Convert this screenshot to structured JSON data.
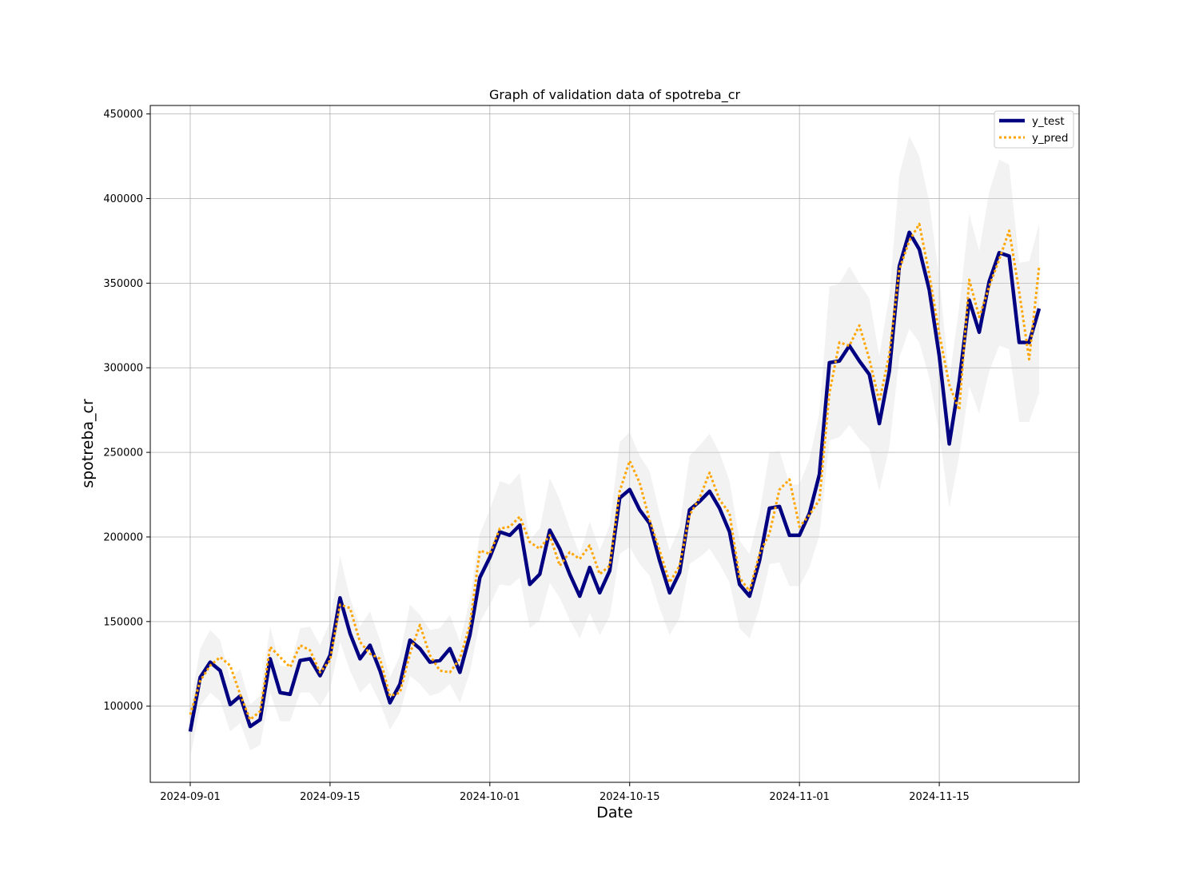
{
  "chart_data": {
    "type": "line",
    "title": "Graph of validation data of spotreba_cr",
    "xlabel": "Date",
    "ylabel": "spotreba_cr",
    "x_start": "2024-09-01",
    "x_end": "2024-11-25",
    "xlim": [
      "2024-08-28",
      "2024-11-29"
    ],
    "ylim": [
      55000,
      455000
    ],
    "x_ticks": [
      "2024-09-01",
      "2024-09-15",
      "2024-10-01",
      "2024-10-15",
      "2024-11-01",
      "2024-11-15"
    ],
    "y_ticks": [
      100000,
      150000,
      200000,
      250000,
      300000,
      350000,
      400000,
      450000
    ],
    "grid": true,
    "legend_position": "top-right",
    "series": [
      {
        "name": "y_test",
        "color": "#000080",
        "style": "solid",
        "values": [
          85000,
          117000,
          126000,
          121000,
          101000,
          106000,
          88000,
          92000,
          128000,
          108000,
          107000,
          127000,
          128000,
          118000,
          130000,
          164000,
          143000,
          128000,
          136000,
          121000,
          102000,
          113000,
          139000,
          134000,
          126000,
          127000,
          134000,
          120000,
          142000,
          176000,
          188000,
          203000,
          201000,
          207000,
          172000,
          178000,
          204000,
          193000,
          178000,
          165000,
          182000,
          167000,
          180000,
          223000,
          228000,
          216000,
          208000,
          186000,
          167000,
          179000,
          216000,
          221000,
          227000,
          217000,
          203000,
          172000,
          165000,
          186000,
          217000,
          218000,
          201000,
          201000,
          214000,
          237000,
          303000,
          304000,
          313000,
          304000,
          296000,
          267000,
          298000,
          360000,
          380000,
          370000,
          346000,
          307000,
          255000,
          292000,
          340000,
          321000,
          351000,
          368000,
          366000,
          315000,
          315000,
          335000
        ]
      },
      {
        "name": "y_pred",
        "color": "#FFA500",
        "style": "dotted",
        "values": [
          95000,
          115000,
          124000,
          129000,
          124000,
          107000,
          92000,
          97000,
          135000,
          129000,
          123000,
          136000,
          133000,
          120000,
          127000,
          160000,
          158000,
          138000,
          131000,
          128000,
          106000,
          108000,
          131000,
          148000,
          130000,
          121000,
          120000,
          128000,
          148000,
          192000,
          190000,
          205000,
          206000,
          212000,
          197000,
          193000,
          201000,
          183000,
          191000,
          187000,
          195000,
          178000,
          183000,
          227000,
          245000,
          232000,
          210000,
          192000,
          173000,
          183000,
          213000,
          223000,
          238000,
          222000,
          214000,
          176000,
          168000,
          190000,
          202000,
          228000,
          234000,
          206000,
          213000,
          222000,
          285000,
          315000,
          313000,
          325000,
          305000,
          280000,
          308000,
          358000,
          375000,
          385000,
          355000,
          320000,
          290000,
          275000,
          352000,
          330000,
          348000,
          364000,
          381000,
          345000,
          305000,
          360000
        ]
      }
    ],
    "band": {
      "color": "#d3d3d3",
      "lower": [
        70000,
        100000,
        108000,
        103000,
        85000,
        90000,
        74000,
        77000,
        108000,
        91000,
        91000,
        108000,
        108000,
        100000,
        110000,
        138000,
        121000,
        108000,
        114000,
        102000,
        86000,
        96000,
        118000,
        113000,
        106000,
        108000,
        113000,
        102000,
        120000,
        150000,
        160000,
        172000,
        171000,
        176000,
        146000,
        151000,
        173000,
        164000,
        151000,
        140000,
        155000,
        142000,
        153000,
        190000,
        194000,
        184000,
        177000,
        158000,
        142000,
        152000,
        184000,
        188000,
        193000,
        184000,
        173000,
        146000,
        140000,
        158000,
        184000,
        185000,
        171000,
        171000,
        182000,
        201000,
        257000,
        259000,
        266000,
        258000,
        252000,
        227000,
        253000,
        306000,
        323000,
        315000,
        294000,
        261000,
        217000,
        248000,
        289000,
        273000,
        298000,
        313000,
        311000,
        268000,
        268000,
        285000
      ],
      "upper": [
        100000,
        134000,
        145000,
        139000,
        116000,
        122000,
        101000,
        106000,
        147000,
        124000,
        123000,
        146000,
        147000,
        136000,
        150000,
        189000,
        164000,
        147000,
        156000,
        139000,
        117000,
        130000,
        160000,
        154000,
        145000,
        146000,
        154000,
        138000,
        163000,
        202000,
        216000,
        233000,
        231000,
        238000,
        198000,
        205000,
        235000,
        222000,
        205000,
        190000,
        209000,
        192000,
        207000,
        256000,
        262000,
        248000,
        239000,
        214000,
        192000,
        206000,
        248000,
        254000,
        261000,
        250000,
        233000,
        198000,
        190000,
        214000,
        250000,
        251000,
        231000,
        231000,
        246000,
        273000,
        348000,
        350000,
        360000,
        350000,
        341000,
        307000,
        343000,
        414000,
        437000,
        425000,
        398000,
        353000,
        293000,
        336000,
        391000,
        369000,
        404000,
        423000,
        420000,
        362000,
        363000,
        385000
      ]
    }
  }
}
